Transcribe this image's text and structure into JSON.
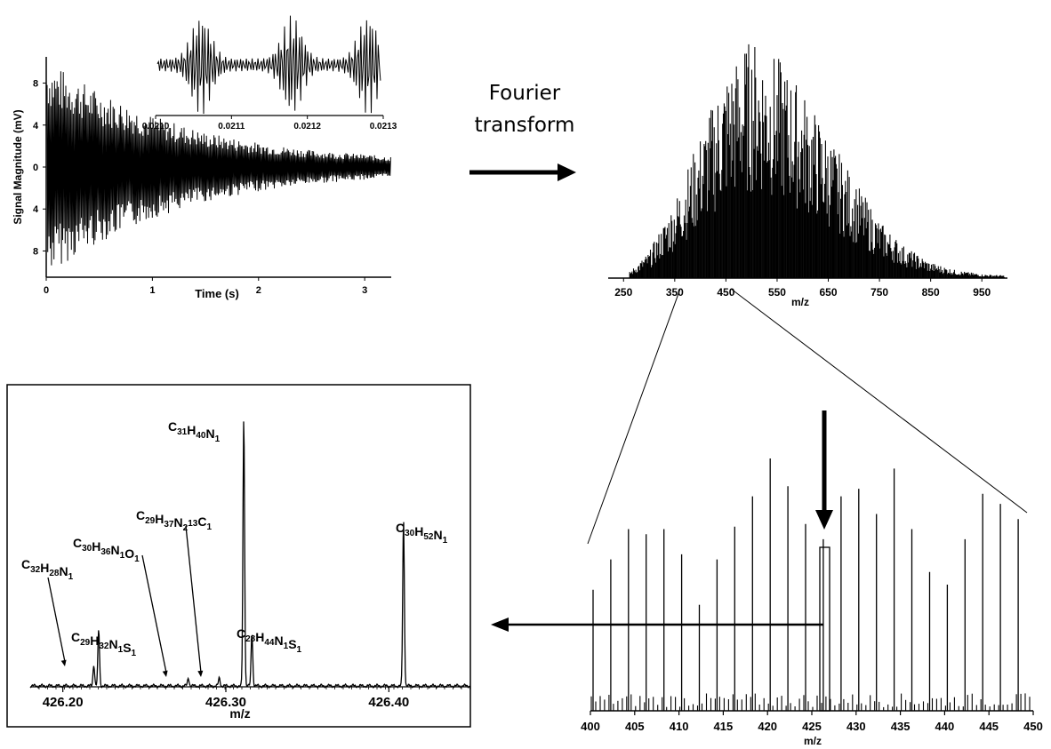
{
  "figure": {
    "arrow_text_line1": "Fourier",
    "arrow_text_line2": "transform"
  },
  "chart_data": [
    {
      "id": "transient",
      "type": "line",
      "title": "",
      "xlabel": "Time (s)",
      "ylabel": "Signal Magnitude (mV)",
      "xlim": [
        0,
        3.25
      ],
      "ylim": [
        -10.5,
        10.5
      ],
      "xticks": [
        0,
        1,
        2,
        3
      ],
      "yticks": [
        8,
        4,
        0,
        -4,
        -8
      ],
      "yticklabels": [
        "8",
        "4",
        "0",
        "4",
        "8"
      ],
      "envelope": {
        "x": [
          0,
          0.5,
          1,
          1.5,
          2,
          2.5,
          3,
          3.25
        ],
        "amplitude": [
          10.2,
          7.2,
          4.9,
          3.3,
          2.3,
          1.6,
          1.2,
          1.0
        ]
      },
      "grid": false,
      "legend": "none"
    },
    {
      "id": "transient_inset",
      "type": "line",
      "xlim": [
        0.021,
        0.0213
      ],
      "xticks": [
        0.021,
        0.0211,
        0.0212,
        0.0213
      ],
      "xticklabels": [
        "0.0210",
        "0.0211",
        "0.0212",
        "0.0213"
      ],
      "beat_maxima": [
        0.02106,
        0.02118,
        0.02128
      ]
    },
    {
      "id": "full_spectrum",
      "type": "bar",
      "xlabel": "m/z",
      "xlim": [
        220,
        1000
      ],
      "xticks": [
        250,
        350,
        450,
        550,
        650,
        750,
        850,
        950
      ],
      "envelope": {
        "x": [
          260,
          300,
          350,
          400,
          450,
          500,
          550,
          600,
          650,
          700,
          750,
          800,
          850,
          900,
          950,
          1000
        ],
        "relative_intensity": [
          0.02,
          0.1,
          0.3,
          0.55,
          0.8,
          0.92,
          0.85,
          0.72,
          0.55,
          0.38,
          0.22,
          0.12,
          0.06,
          0.03,
          0.015,
          0.01
        ]
      }
    },
    {
      "id": "zoom_400_450",
      "type": "bar",
      "xlabel": "m/z",
      "xlim": [
        400,
        450
      ],
      "xticks": [
        400,
        405,
        410,
        415,
        420,
        425,
        430,
        435,
        440,
        445,
        450
      ],
      "major_peaks": {
        "mz": [
          400.3,
          402.3,
          404.3,
          406.3,
          408.3,
          410.3,
          412.3,
          414.3,
          416.3,
          418.3,
          420.3,
          422.3,
          424.3,
          426.3,
          428.3,
          430.3,
          432.3,
          434.3,
          436.3,
          438.3,
          440.3,
          442.3,
          444.3,
          446.3,
          448.3
        ],
        "relative_intensity": [
          0.48,
          0.6,
          0.72,
          0.7,
          0.72,
          0.62,
          0.42,
          0.6,
          0.73,
          0.85,
          1.0,
          0.89,
          0.74,
          0.68,
          0.85,
          0.88,
          0.78,
          0.96,
          0.72,
          0.55,
          0.5,
          0.68,
          0.86,
          0.82,
          0.76
        ]
      }
    },
    {
      "id": "zoom_426",
      "type": "line",
      "xlabel": "m/z",
      "xlim": [
        426.18,
        426.45
      ],
      "xticks": [
        426.2,
        426.3,
        426.4
      ],
      "xticklabels": [
        "426.20",
        "426.30",
        "426.40"
      ],
      "peaks": [
        {
          "mz": 426.219,
          "relative_intensity": 0.08
        },
        {
          "mz": 426.222,
          "relative_intensity": 0.21
        },
        {
          "mz": 426.277,
          "relative_intensity": 0.03
        },
        {
          "mz": 426.296,
          "relative_intensity": 0.03
        },
        {
          "mz": 426.311,
          "relative_intensity": 1.0
        },
        {
          "mz": 426.316,
          "relative_intensity": 0.2
        },
        {
          "mz": 426.409,
          "relative_intensity": 0.62
        }
      ],
      "annotations": [
        {
          "segs": [
            [
              "C",
              "32"
            ],
            [
              "H",
              "28"
            ],
            [
              "N",
              "1"
            ]
          ]
        },
        {
          "segs": [
            [
              "C",
              "29"
            ],
            [
              "H",
              "32"
            ],
            [
              "N",
              "1"
            ],
            [
              "S",
              "1"
            ]
          ]
        },
        {
          "segs": [
            [
              "C",
              "30"
            ],
            [
              "H",
              "36"
            ],
            [
              "N",
              "1"
            ],
            [
              "O",
              "1"
            ]
          ]
        },
        {
          "segs": [
            [
              "C",
              "29"
            ],
            [
              "H",
              "37"
            ],
            [
              "N",
              "2"
            ],
            [
              "",
              "13"
            ],
            [
              "C",
              "1"
            ]
          ]
        },
        {
          "segs": [
            [
              "C",
              "31"
            ],
            [
              "H",
              "40"
            ],
            [
              "N",
              "1"
            ]
          ]
        },
        {
          "segs": [
            [
              "C",
              "28"
            ],
            [
              "H",
              "44"
            ],
            [
              "N",
              "1"
            ],
            [
              "S",
              "1"
            ]
          ]
        },
        {
          "segs": [
            [
              "C",
              "30"
            ],
            [
              "H",
              "52"
            ],
            [
              "N",
              "1"
            ]
          ]
        }
      ]
    }
  ]
}
